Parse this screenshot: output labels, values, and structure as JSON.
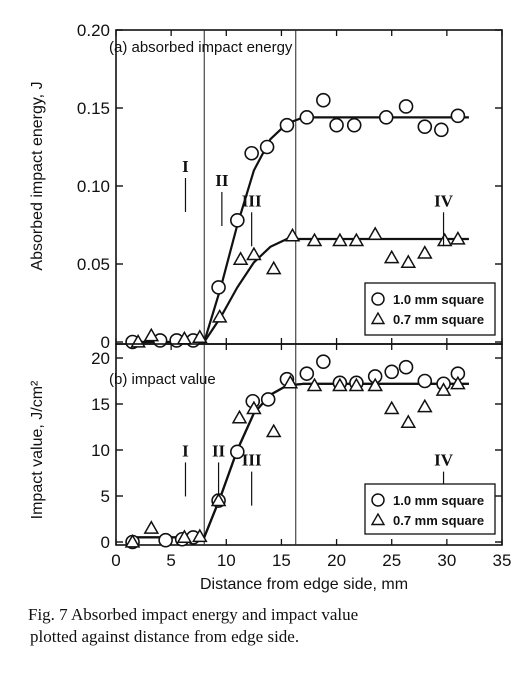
{
  "caption": {
    "line1": "Fig. 7 Absorbed impact energy and impact value",
    "line2": "plotted against distance from edge side."
  },
  "chart_data": [
    {
      "type": "scatter",
      "title": "(a) absorbed impact energy",
      "xlabel": "Distance from edge side, mm",
      "ylabel": "Absorbed impact energy, J",
      "xlim": [
        0,
        35
      ],
      "ylim": [
        0,
        0.2
      ],
      "xticks": [
        "0",
        "5",
        "10",
        "15",
        "20",
        "25",
        "30",
        "35"
      ],
      "yticks": [
        "0",
        "0.05",
        "0.10",
        "0.15",
        "0.20"
      ],
      "grid": false,
      "legend_position": "bottom-right",
      "vlines": [
        8,
        16.3
      ],
      "series": [
        {
          "name": "1.0 mm square",
          "marker": "circle",
          "points": [
            [
              1.5,
              0.0
            ],
            [
              4,
              0.001
            ],
            [
              5.5,
              0.001
            ],
            [
              7,
              0.001
            ],
            [
              9.3,
              0.035
            ],
            [
              11,
              0.078
            ],
            [
              12.3,
              0.121
            ],
            [
              13.7,
              0.125
            ],
            [
              15.5,
              0.139
            ],
            [
              17.3,
              0.144
            ],
            [
              18.8,
              0.155
            ],
            [
              20,
              0.139
            ],
            [
              21.6,
              0.139
            ],
            [
              24.5,
              0.144
            ],
            [
              26.3,
              0.151
            ],
            [
              28,
              0.138
            ],
            [
              29.5,
              0.136
            ],
            [
              31,
              0.145
            ]
          ],
          "fit": [
            [
              1.5,
              0.0
            ],
            [
              6.5,
              0.0
            ],
            [
              8,
              0.0
            ],
            [
              9.5,
              0.035
            ],
            [
              11,
              0.075
            ],
            [
              12.5,
              0.11
            ],
            [
              14,
              0.13
            ],
            [
              15.5,
              0.14
            ],
            [
              17,
              0.144
            ],
            [
              32,
              0.144
            ]
          ]
        },
        {
          "name": "0.7 mm square",
          "marker": "triangle",
          "points": [
            [
              2,
              0.0
            ],
            [
              3.2,
              0.004
            ],
            [
              6.2,
              0.002
            ],
            [
              7.6,
              0.003
            ],
            [
              9.4,
              0.016
            ],
            [
              11.3,
              0.053
            ],
            [
              12.5,
              0.056
            ],
            [
              14.3,
              0.047
            ],
            [
              16,
              0.068
            ],
            [
              18,
              0.065
            ],
            [
              20.3,
              0.065
            ],
            [
              21.8,
              0.065
            ],
            [
              23.5,
              0.069
            ],
            [
              25,
              0.054
            ],
            [
              26.5,
              0.051
            ],
            [
              28,
              0.057
            ],
            [
              29.8,
              0.065
            ],
            [
              31,
              0.066
            ]
          ],
          "fit": [
            [
              1.5,
              0.0
            ],
            [
              6.5,
              0.0
            ],
            [
              8,
              0.0
            ],
            [
              9.5,
              0.016
            ],
            [
              11,
              0.035
            ],
            [
              12.5,
              0.051
            ],
            [
              14,
              0.061
            ],
            [
              15.5,
              0.066
            ],
            [
              17,
              0.066
            ],
            [
              32,
              0.066
            ]
          ]
        }
      ],
      "annotations": [
        {
          "text": "I",
          "x": 6.3,
          "y": 0.109
        },
        {
          "text": "II",
          "x": 9.6,
          "y": 0.1
        },
        {
          "text": "III",
          "x": 12.3,
          "y": 0.087
        },
        {
          "text": "IV",
          "x": 29.7,
          "y": 0.087
        }
      ]
    },
    {
      "type": "scatter",
      "title": "(b) impact value",
      "xlabel": "Distance from edge side, mm",
      "ylabel": "Impact value, J/cm²",
      "xlim": [
        0,
        35
      ],
      "ylim": [
        0,
        20
      ],
      "xticks": [
        "0",
        "5",
        "10",
        "15",
        "20",
        "25",
        "30",
        "35"
      ],
      "yticks": [
        "0",
        "5",
        "10",
        "15",
        "20"
      ],
      "grid": false,
      "legend_position": "bottom-right",
      "vlines": [
        8,
        16.3
      ],
      "series": [
        {
          "name": "1.0 mm square",
          "marker": "circle",
          "points": [
            [
              1.5,
              0.0
            ],
            [
              4.5,
              0.2
            ],
            [
              6,
              0.3
            ],
            [
              7,
              0.5
            ],
            [
              9.3,
              4.5
            ],
            [
              11,
              9.8
            ],
            [
              12.4,
              15.3
            ],
            [
              13.8,
              15.5
            ],
            [
              15.5,
              17.7
            ],
            [
              17.3,
              18.3
            ],
            [
              18.8,
              19.6
            ],
            [
              20.3,
              17.3
            ],
            [
              21.8,
              17.3
            ],
            [
              23.5,
              18
            ],
            [
              25,
              18.5
            ],
            [
              26.3,
              19
            ],
            [
              28,
              17.5
            ],
            [
              29.7,
              17.2
            ],
            [
              31,
              18.3
            ]
          ],
          "fit": [
            [
              1.5,
              0.5
            ],
            [
              6.5,
              0.5
            ],
            [
              8,
              0.5
            ],
            [
              9.5,
              5.0
            ],
            [
              11,
              10.0
            ],
            [
              12.5,
              14.0
            ],
            [
              14,
              16.0
            ],
            [
              15.5,
              17.0
            ],
            [
              17,
              17.2
            ],
            [
              32,
              17.2
            ]
          ]
        },
        {
          "name": "0.7 mm square",
          "marker": "triangle",
          "points": [
            [
              1.5,
              0.0
            ],
            [
              3.2,
              1.5
            ],
            [
              6.2,
              0.5
            ],
            [
              7.6,
              0.6
            ],
            [
              9.3,
              4.5
            ],
            [
              11.2,
              13.5
            ],
            [
              12.5,
              14.5
            ],
            [
              14.3,
              12
            ],
            [
              15.8,
              17.3
            ],
            [
              18,
              17
            ],
            [
              20.3,
              17
            ],
            [
              21.8,
              17
            ],
            [
              23.5,
              17
            ],
            [
              25,
              14.5
            ],
            [
              26.5,
              13
            ],
            [
              28,
              14.7
            ],
            [
              29.7,
              16.5
            ],
            [
              31,
              17.2
            ]
          ],
          "fit": [
            [
              1.5,
              0.5
            ],
            [
              6.5,
              0.5
            ],
            [
              8,
              0.5
            ],
            [
              9.5,
              5.0
            ],
            [
              11,
              10.0
            ],
            [
              12.5,
              14.0
            ],
            [
              14,
              16.0
            ],
            [
              15.5,
              17.0
            ],
            [
              17,
              17.2
            ],
            [
              32,
              17.2
            ]
          ]
        }
      ],
      "annotations": [
        {
          "text": "I",
          "x": 6.3,
          "y": 9.3
        },
        {
          "text": "II",
          "x": 9.3,
          "y": 9.3
        },
        {
          "text": "III",
          "x": 12.3,
          "y": 8.3
        },
        {
          "text": "IV",
          "x": 29.7,
          "y": 8.3
        }
      ]
    }
  ]
}
